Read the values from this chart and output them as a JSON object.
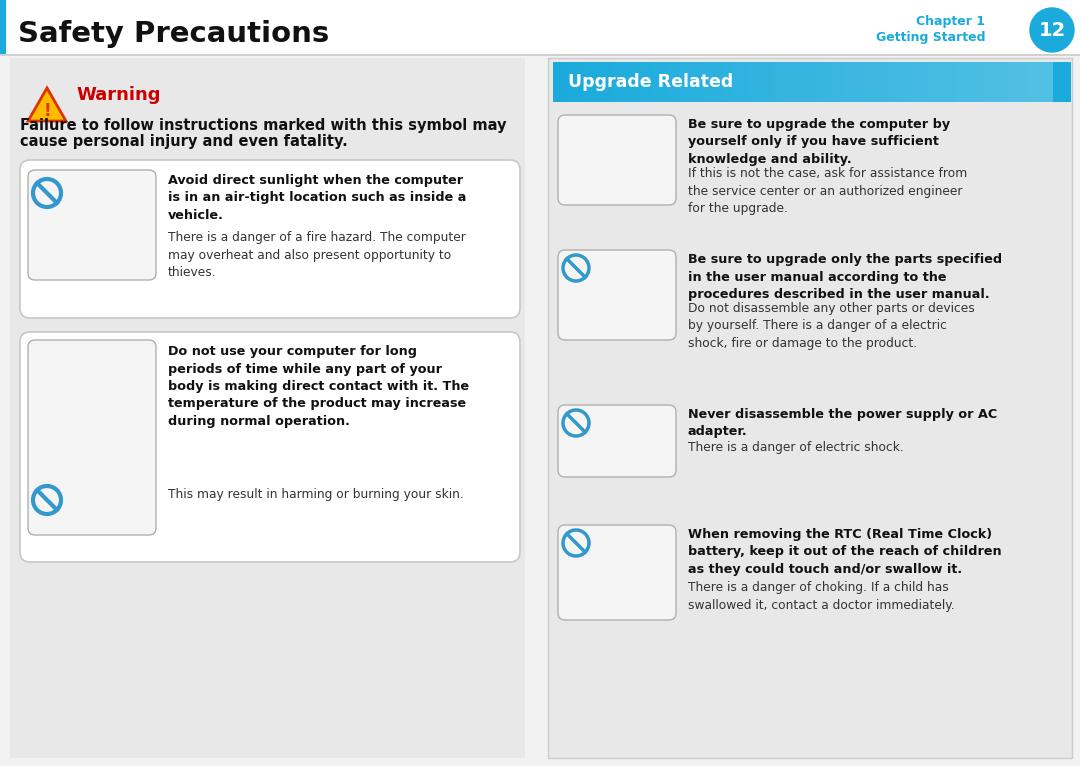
{
  "page_title": "Safety Precautions",
  "chapter_label": "Chapter 1",
  "chapter_sub": "Getting Started",
  "chapter_num": "12",
  "bg_color": "#f2f2f2",
  "header_bg": "#ffffff",
  "header_border_color": "#1aabdc",
  "chapter_circle_color": "#1aabdc",
  "chapter_text_color": "#1aabdc",
  "warning_color": "#cc0000",
  "warning_title": "Warning",
  "warning_desc1": "Failure to follow instructions marked with this symbol may",
  "warning_desc2": "cause personal injury and even fatality.",
  "upgrade_header_color": "#1aabdc",
  "upgrade_title": "Upgrade Related",
  "left_item1_bold": "Avoid direct sunlight when the computer\nis in an air-tight location such as inside a\nvehicle.",
  "left_item1_normal": "There is a danger of a fire hazard. The computer\nmay overheat and also present opportunity to\nthieves.",
  "left_item2_bold": "Do not use your computer for long\nperiods of time while any part of your\nbody is making direct contact with it. The\ntemperature of the product may increase\nduring normal operation.",
  "left_item2_normal": "This may result in harming or burning your skin.",
  "right_item1_bold": "Be sure to upgrade the computer by\nyourself only if you have sufficient\nknowledge and ability.",
  "right_item1_normal": "If this is not the case, ask for assistance from\nthe service center or an authorized engineer\nfor the upgrade.",
  "right_item2_bold": "Be sure to upgrade only the parts specified\nin the user manual according to the\nprocedures described in the user manual.",
  "right_item2_normal": "Do not disassemble any other parts or devices\nby yourself. There is a danger of a electric\nshock, fire or damage to the product.",
  "right_item3_bold": "Never disassemble the power supply or AC\nadapter.",
  "right_item3_normal": "There is a danger of electric shock.",
  "right_item4_bold": "When removing the RTC (Real Time Clock)\nbattery, keep it out of the reach of children\nas they could touch and/or swallow it.",
  "right_item4_normal": "There is a danger of choking. If a child has\nswallowed it, contact a doctor immediately.",
  "panel_bg": "#e8e8e8",
  "img_border": "#b0b0b0",
  "img_bg": "#f5f5f5",
  "no_sign_color": "#3399cc"
}
